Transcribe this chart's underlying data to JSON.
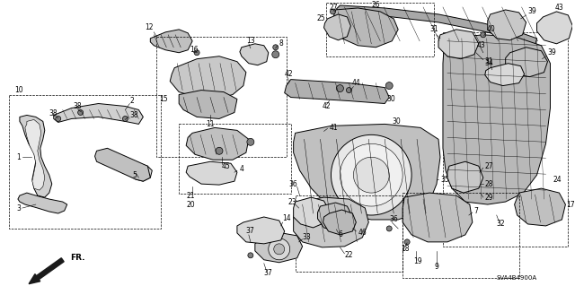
{
  "bg_color": "#ffffff",
  "line_color": "#000000",
  "gray1": "#c8c8c8",
  "gray2": "#b0b0b0",
  "gray3": "#d8d8d8",
  "gray4": "#e8e8e8",
  "fig_width": 6.4,
  "fig_height": 3.19,
  "dpi": 100,
  "diagram_id": "SVA4B4900A",
  "font_size_label": 5.5,
  "font_size_fr": 6.5,
  "lw_main": 0.7,
  "lw_thin": 0.4,
  "lw_dash": 0.5
}
